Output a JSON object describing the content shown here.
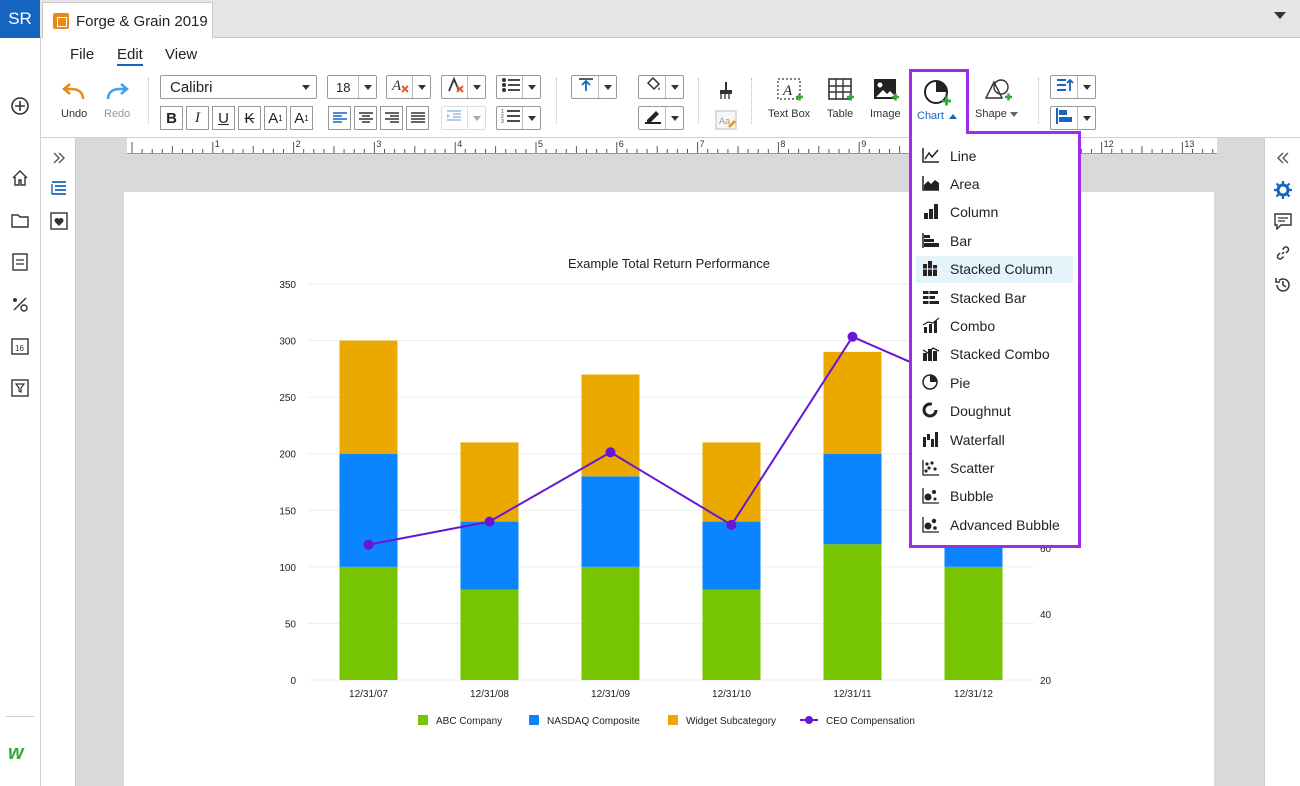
{
  "topbar": {
    "user_initials": "SR",
    "doc_tab_title": "Forge & Grain 2019"
  },
  "menu": {
    "file": "File",
    "edit": "Edit",
    "view": "View"
  },
  "toolbar": {
    "undo": "Undo",
    "redo": "Redo",
    "font_family": "Calibri",
    "font_size": "18",
    "bold": "B",
    "italic": "I",
    "underline": "U",
    "strikethrough": "K",
    "superscript": "A",
    "subscript": "A",
    "text_box": "Text Box",
    "table": "Table",
    "image": "Image",
    "chart": "Chart",
    "shape": "Shape"
  },
  "ruler": {
    "numbers": [
      "1",
      "2",
      "3",
      "4",
      "5",
      "6",
      "7",
      "8",
      "9",
      "10",
      "11",
      "12",
      "13"
    ]
  },
  "chart_menu": {
    "items": [
      {
        "label": "Line",
        "icon": "line-chart-icon"
      },
      {
        "label": "Area",
        "icon": "area-chart-icon"
      },
      {
        "label": "Column",
        "icon": "column-chart-icon"
      },
      {
        "label": "Bar",
        "icon": "bar-chart-icon"
      },
      {
        "label": "Stacked Column",
        "icon": "stacked-column-icon",
        "hover": true
      },
      {
        "label": "Stacked Bar",
        "icon": "stacked-bar-icon"
      },
      {
        "label": "Combo",
        "icon": "combo-chart-icon"
      },
      {
        "label": "Stacked Combo",
        "icon": "stacked-combo-icon"
      },
      {
        "label": "Pie",
        "icon": "pie-chart-icon"
      },
      {
        "label": "Doughnut",
        "icon": "doughnut-chart-icon"
      },
      {
        "label": "Waterfall",
        "icon": "waterfall-chart-icon"
      },
      {
        "label": "Scatter",
        "icon": "scatter-chart-icon"
      },
      {
        "label": "Bubble",
        "icon": "bubble-chart-icon"
      },
      {
        "label": "Advanced Bubble",
        "icon": "advanced-bubble-icon"
      }
    ]
  },
  "chart_data": {
    "type": "bar",
    "title": "Example Total Return Performance",
    "categories": [
      "12/31/07",
      "12/31/08",
      "12/31/09",
      "12/31/10",
      "12/31/11",
      "12/31/12"
    ],
    "stacked": true,
    "ylim": [
      0,
      350
    ],
    "yticks": [
      "0",
      "50",
      "100",
      "150",
      "200",
      "250",
      "300",
      "350"
    ],
    "y2lim": [
      20,
      140
    ],
    "y2ticks_visible": [
      "20",
      "40",
      "60"
    ],
    "series": [
      {
        "name": "ABC Company",
        "type": "bar",
        "color": "#76c500",
        "values": [
          100,
          80,
          100,
          80,
          120,
          100
        ]
      },
      {
        "name": "NASDAQ Composite",
        "type": "bar",
        "color": "#0a84ff",
        "values": [
          100,
          60,
          80,
          60,
          80,
          100
        ]
      },
      {
        "name": "Widget Subcategory",
        "type": "bar",
        "color": "#eba900",
        "values": [
          100,
          70,
          90,
          70,
          90,
          60
        ]
      },
      {
        "name": "CEO Compensation",
        "type": "line",
        "axis": "right",
        "color": "#6617d6",
        "values": [
          61,
          68,
          89,
          67,
          124,
          108
        ]
      }
    ],
    "legend_position": "bottom"
  }
}
